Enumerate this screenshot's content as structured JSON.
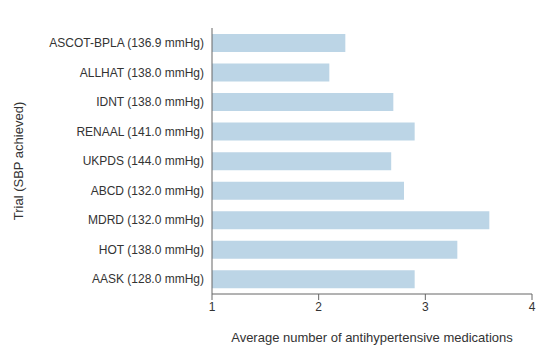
{
  "chart_data": {
    "type": "bar",
    "orientation": "horizontal",
    "categories": [
      "ASCOT-BPLA (136.9 mmHg)",
      "ALLHAT (138.0 mmHg)",
      "IDNT (138.0 mmHg)",
      "RENAAL (141.0 mmHg)",
      "UKPDS (144.0 mmHg)",
      "ABCD (132.0 mmHg)",
      "MDRD (132.0 mmHg)",
      "HOT (138.0 mmHg)",
      "AASK (128.0 mmHg)"
    ],
    "values": [
      2.25,
      2.1,
      2.7,
      2.9,
      2.68,
      2.8,
      3.6,
      3.3,
      2.9
    ],
    "color": "#bcd5e6",
    "xlim": [
      1,
      4
    ],
    "xticks": [
      1,
      2,
      3,
      4
    ],
    "x_label": "Average number of antihypertensive medications",
    "y_label": "Trial (SBP achieved)",
    "grid": false
  }
}
